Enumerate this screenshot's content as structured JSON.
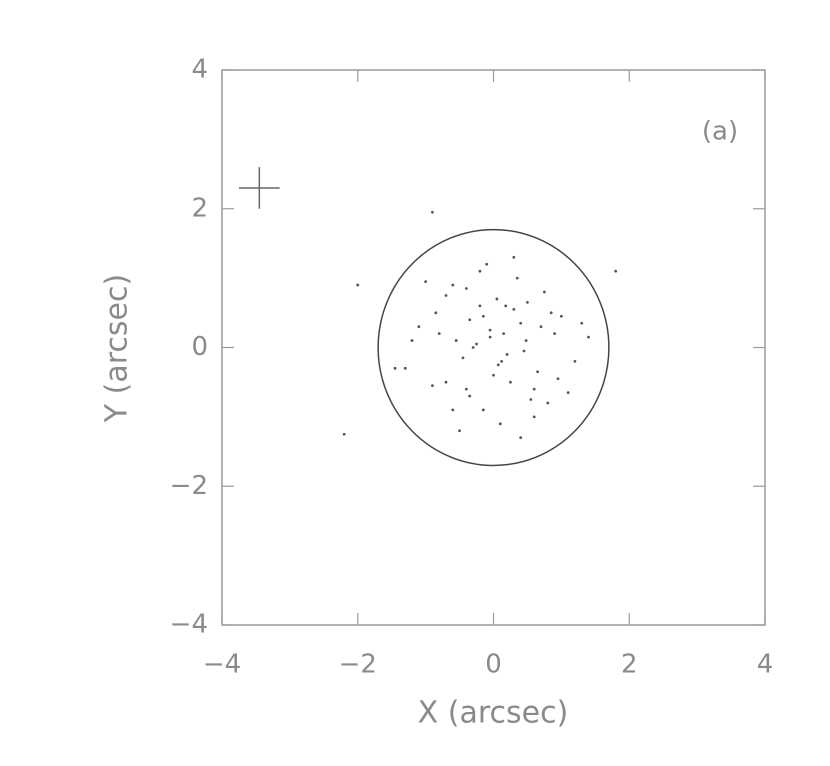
{
  "chart_data": {
    "type": "scatter",
    "title": "(a)",
    "x_label": "X (arcsec)",
    "y_label": "Y (arcsec)",
    "xlim": [
      -4,
      4
    ],
    "ylim": [
      -4,
      4
    ],
    "xticks": [
      {
        "value": -4,
        "label": "−4"
      },
      {
        "value": -2,
        "label": "−2"
      },
      0,
      2,
      4
    ],
    "yticks": [
      {
        "value": -4,
        "label": "−4"
      },
      {
        "value": -2,
        "label": "−2"
      },
      0,
      2,
      4
    ],
    "color": "#555555",
    "x": [
      0.12,
      -0.35,
      0.48,
      -0.7,
      0.05,
      0.9,
      -0.15,
      0.3,
      -0.55,
      0.65,
      -1.1,
      0.2,
      -0.05,
      0.75,
      -0.4,
      1.2,
      -0.85,
      0.1,
      0.4,
      -0.25,
      0.55,
      -0.6,
      1.0,
      -1.3,
      0.0,
      0.35,
      -0.45,
      0.8,
      -0.2,
      0.15,
      -0.9,
      1.4,
      -0.1,
      0.6,
      -0.7,
      0.25,
      -0.3,
      0.95,
      -1.0,
      0.5,
      0.07,
      -0.5,
      0.7,
      -0.15,
      1.1,
      -1.2,
      0.3,
      -0.35,
      0.45,
      -0.8,
      0.18,
      0.85,
      -0.6,
      -0.05,
      1.3,
      -1.45,
      0.4,
      -0.2,
      0.6,
      -0.4,
      -2.2,
      1.8,
      -0.9,
      -2.0
    ],
    "y": [
      -0.2,
      0.4,
      0.1,
      -0.5,
      0.7,
      0.2,
      -0.9,
      0.55,
      0.1,
      -0.35,
      0.3,
      -0.1,
      0.25,
      0.8,
      -0.6,
      -0.2,
      0.5,
      -1.1,
      0.35,
      0.05,
      -0.75,
      0.9,
      0.45,
      -0.3,
      -0.4,
      1.0,
      -0.15,
      -0.8,
      0.6,
      0.2,
      -0.55,
      0.15,
      1.2,
      -1.0,
      0.75,
      -0.5,
      0.0,
      -0.45,
      0.95,
      0.65,
      -0.25,
      -1.2,
      0.3,
      0.45,
      -0.65,
      0.1,
      1.3,
      -0.7,
      -0.05,
      0.2,
      0.6,
      0.5,
      -0.9,
      0.15,
      0.35,
      -0.3,
      -1.3,
      1.1,
      -0.6,
      0.85,
      -1.25,
      1.1,
      1.95,
      0.9
    ],
    "circle": {
      "x": 0,
      "y": 0,
      "r": 1.7
    },
    "cross": {
      "x": -3.45,
      "y": 2.3,
      "half_size": 0.3
    }
  }
}
